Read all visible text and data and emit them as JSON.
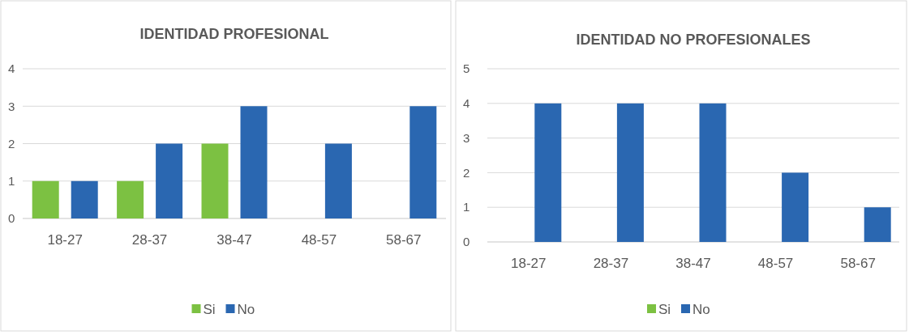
{
  "chart_data": [
    {
      "type": "bar",
      "title": "IDENTIDAD PROFESIONAL",
      "categories": [
        "18-27",
        "28-37",
        "38-47",
        "48-57",
        "58-67"
      ],
      "series": [
        {
          "name": "Si",
          "color": "#7cc142",
          "values": [
            1,
            1,
            2,
            0,
            0
          ]
        },
        {
          "name": "No",
          "color": "#2a67b1",
          "values": [
            1,
            2,
            3,
            2,
            3
          ]
        }
      ],
      "ylim": [
        0,
        4
      ],
      "yticks": [
        0,
        1,
        2,
        3,
        4
      ],
      "grid": "y",
      "legend": "bottom"
    },
    {
      "type": "bar",
      "title": "IDENTIDAD NO PROFESIONALES",
      "categories": [
        "18-27",
        "28-37",
        "38-47",
        "48-57",
        "58-67"
      ],
      "series": [
        {
          "name": "Si",
          "color": "#7cc142",
          "values": [
            0,
            0,
            0,
            0,
            0
          ]
        },
        {
          "name": "No",
          "color": "#2a67b1",
          "values": [
            4,
            4,
            4,
            2,
            1
          ]
        }
      ],
      "ylim": [
        0,
        5
      ],
      "yticks": [
        0,
        1,
        2,
        3,
        4,
        5
      ],
      "grid": "y",
      "legend": "bottom"
    }
  ]
}
